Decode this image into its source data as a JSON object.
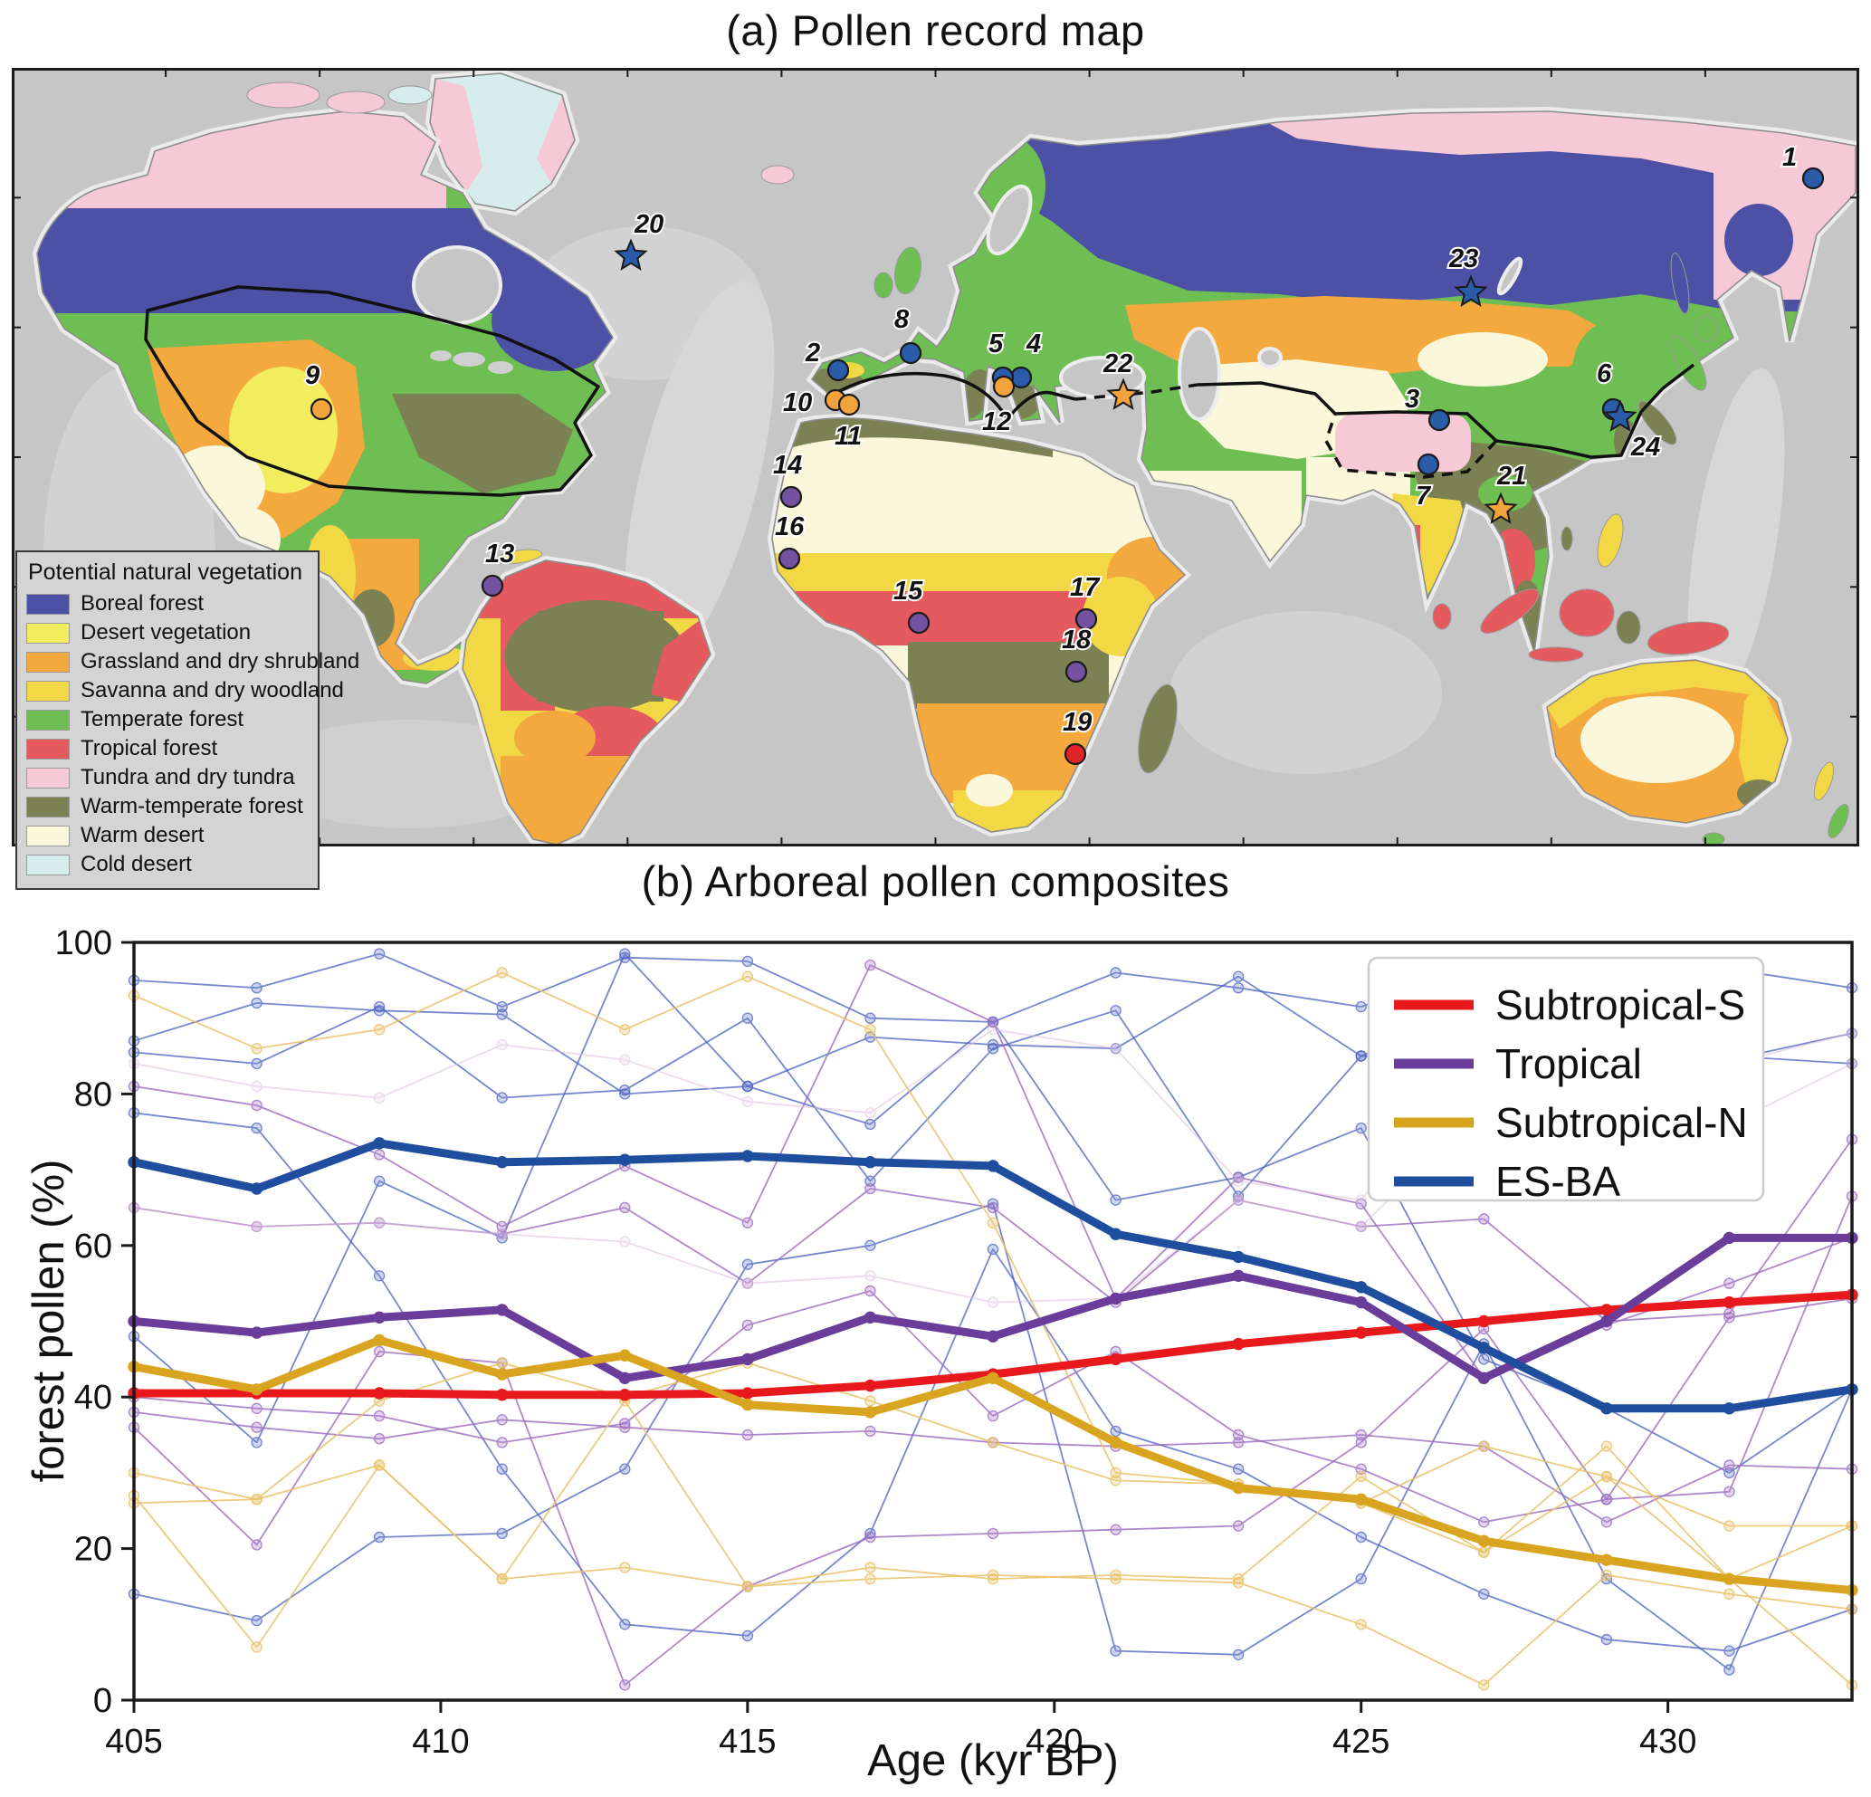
{
  "panel_a": {
    "title": "(a) Pollen record map"
  },
  "panel_b": {
    "title": "(b) Arboreal pollen composites"
  },
  "map": {
    "legend_title": "Potential natural vegetation",
    "legend_items": [
      {
        "label": "Boreal forest",
        "color": "#4c51a5"
      },
      {
        "label": "Desert vegetation",
        "color": "#f2ec5f"
      },
      {
        "label": "Grassland and dry shrubland",
        "color": "#f4a93f"
      },
      {
        "label": "Savanna and dry woodland",
        "color": "#f3d845"
      },
      {
        "label": "Temperate forest",
        "color": "#6fbe53"
      },
      {
        "label": "Tropical forest",
        "color": "#e55a5e"
      },
      {
        "label": "Tundra and dry tundra",
        "color": "#f6c9d7"
      },
      {
        "label": "Warm-temperate forest",
        "color": "#7c8153"
      },
      {
        "label": "Warm desert",
        "color": "#fbf7da"
      },
      {
        "label": "Cold desert",
        "color": "#d7edeb"
      }
    ],
    "marker_groups": {
      "ES-BA": "#2a5caa",
      "Subtropical-N": "#f2a33c",
      "Tropical": "#7451a1",
      "Subtropical-S": "#e02428"
    },
    "markers": [
      {
        "id": "1",
        "shape": "circle",
        "group": "ES-BA",
        "x": 1990,
        "y": 122,
        "lx": -34,
        "ly": -14
      },
      {
        "id": "2",
        "shape": "circle",
        "group": "ES-BA",
        "x": 913,
        "y": 334,
        "lx": -36,
        "ly": -10
      },
      {
        "id": "3",
        "shape": "circle",
        "group": "ES-BA",
        "x": 1577,
        "y": 389,
        "lx": -38,
        "ly": -14
      },
      {
        "id": "4",
        "shape": "circle",
        "group": "ES-BA",
        "x": 1115,
        "y": 342,
        "lx": 6,
        "ly": -28
      },
      {
        "id": "5",
        "shape": "circle",
        "group": "ES-BA",
        "x": 1095,
        "y": 342,
        "lx": -16,
        "ly": -28
      },
      {
        "id": "6",
        "shape": "circle",
        "group": "ES-BA",
        "x": 1769,
        "y": 377,
        "lx": -18,
        "ly": -30
      },
      {
        "id": "7",
        "shape": "circle",
        "group": "ES-BA",
        "x": 1565,
        "y": 438,
        "lx": -14,
        "ly": 44
      },
      {
        "id": "8",
        "shape": "circle",
        "group": "ES-BA",
        "x": 993,
        "y": 315,
        "lx": -18,
        "ly": -28
      },
      {
        "id": "9",
        "shape": "circle",
        "group": "Subtropical-N",
        "x": 342,
        "y": 377,
        "lx": -18,
        "ly": -28
      },
      {
        "id": "10",
        "shape": "circle",
        "group": "Subtropical-N",
        "x": 910,
        "y": 367,
        "lx": -58,
        "ly": 12
      },
      {
        "id": "11",
        "shape": "circle",
        "group": "Subtropical-N",
        "x": 925,
        "y": 372,
        "lx": -16,
        "ly": 44
      },
      {
        "id": "12",
        "shape": "circle",
        "group": "Subtropical-N",
        "x": 1096,
        "y": 352,
        "lx": -24,
        "ly": 48
      },
      {
        "id": "13",
        "shape": "circle",
        "group": "Tropical",
        "x": 531,
        "y": 572,
        "lx": -8,
        "ly": -26
      },
      {
        "id": "14",
        "shape": "circle",
        "group": "Tropical",
        "x": 861,
        "y": 474,
        "lx": -20,
        "ly": -26
      },
      {
        "id": "15",
        "shape": "circle",
        "group": "Tropical",
        "x": 1002,
        "y": 613,
        "lx": -28,
        "ly": -26
      },
      {
        "id": "16",
        "shape": "circle",
        "group": "Tropical",
        "x": 859,
        "y": 542,
        "lx": -16,
        "ly": -26
      },
      {
        "id": "17",
        "shape": "circle",
        "group": "Tropical",
        "x": 1187,
        "y": 609,
        "lx": -18,
        "ly": -26
      },
      {
        "id": "18",
        "shape": "circle",
        "group": "Tropical",
        "x": 1176,
        "y": 667,
        "lx": -16,
        "ly": -26
      },
      {
        "id": "19",
        "shape": "circle",
        "group": "Subtropical-S",
        "x": 1175,
        "y": 758,
        "lx": -14,
        "ly": -26
      },
      {
        "id": "20",
        "shape": "star",
        "group": "ES-BA",
        "x": 684,
        "y": 208,
        "lx": 4,
        "ly": -26
      },
      {
        "id": "21",
        "shape": "star",
        "group": "Subtropical-N",
        "x": 1645,
        "y": 488,
        "lx": -4,
        "ly": -28
      },
      {
        "id": "22",
        "shape": "star",
        "group": "Subtropical-N",
        "x": 1228,
        "y": 362,
        "lx": -22,
        "ly": -26
      },
      {
        "id": "23",
        "shape": "star",
        "group": "ES-BA",
        "x": 1612,
        "y": 248,
        "lx": -24,
        "ly": -28
      },
      {
        "id": "24",
        "shape": "star",
        "group": "ES-BA",
        "x": 1777,
        "y": 386,
        "lx": 12,
        "ly": 42
      }
    ]
  },
  "chart_data": {
    "type": "line",
    "title": "(b) Arboreal pollen composites",
    "xlabel": "Age (kyr BP)",
    "ylabel": "forest pollen (%)",
    "xlim": [
      405,
      433
    ],
    "ylim": [
      0,
      100
    ],
    "x_ticks": [
      405,
      410,
      415,
      420,
      425,
      430
    ],
    "y_ticks": [
      0,
      20,
      40,
      60,
      80,
      100
    ],
    "legend_position": "upper right",
    "grid": false,
    "ages": [
      405,
      407,
      409,
      411,
      413,
      415,
      417,
      419,
      421,
      423,
      425,
      427,
      429,
      431,
      433
    ],
    "composites": [
      {
        "name": "Subtropical-S",
        "color": "#e8191d",
        "values": [
          40.5,
          40.5,
          40.5,
          40.3,
          40.3,
          40.5,
          41.5,
          43,
          45,
          47,
          48.5,
          50,
          51.5,
          52.5,
          53.5
        ]
      },
      {
        "name": "Tropical",
        "color": "#6a3d9a",
        "values": [
          50,
          48.5,
          50.5,
          51.5,
          42.5,
          45,
          50.5,
          48,
          53,
          56,
          52.5,
          42.5,
          50,
          61,
          61
        ]
      },
      {
        "name": "Subtropical-N",
        "color": "#d9a520",
        "values": [
          44,
          41,
          47.5,
          43,
          45.5,
          39,
          38,
          42.5,
          34,
          28,
          26.5,
          21,
          18.5,
          16,
          14.5
        ]
      },
      {
        "name": "ES-BA",
        "color": "#1f4e9e",
        "values": [
          71,
          67.5,
          73.5,
          71,
          71.3,
          71.8,
          71,
          70.5,
          61.5,
          58.5,
          54.5,
          46.5,
          38.5,
          38.5,
          41
        ]
      }
    ],
    "records": [
      {
        "group": "ES-BA",
        "color": "#4a5fc0",
        "opacity": 0.75,
        "values": [
          95,
          94,
          98.5,
          91.5,
          98,
          97.5,
          90,
          89.5,
          96,
          94,
          91.5,
          97,
          92,
          96.5,
          94
        ]
      },
      {
        "group": "ES-BA",
        "color": "#4a5fc0",
        "opacity": 0.75,
        "values": [
          87,
          92,
          91,
          90.5,
          80,
          81,
          87.5,
          86.5,
          86,
          95.5,
          85,
          91.5,
          95,
          85,
          84
        ]
      },
      {
        "group": "ES-BA",
        "color": "#4a5fc0",
        "opacity": 0.75,
        "values": [
          85.5,
          84,
          91.5,
          79.5,
          80.5,
          90,
          68.5,
          86,
          91,
          66.5,
          85,
          84.5,
          73.5,
          84.5,
          88
        ]
      },
      {
        "group": "ES-BA",
        "color": "#4a5fc0",
        "opacity": 0.75,
        "values": [
          77.5,
          75.5,
          56,
          30.5,
          10,
          8.5,
          22,
          59.5,
          35.5,
          30.5,
          21.5,
          14,
          8,
          6.5,
          12
        ]
      },
      {
        "group": "ES-BA",
        "color": "#4a5fc0",
        "opacity": 0.75,
        "values": [
          14,
          10.5,
          21.5,
          22,
          30.5,
          57.5,
          60,
          65.5,
          6.5,
          6,
          16,
          47,
          16,
          4,
          41
        ]
      },
      {
        "group": "ES-BA",
        "color": "#4a5fc0",
        "opacity": 0.75,
        "values": [
          48,
          34,
          68.5,
          61,
          98.5,
          81,
          76,
          89.5,
          66,
          69,
          75.5,
          45,
          38.5,
          30,
          41
        ]
      },
      {
        "group": "Tropical",
        "color": "#9b6bbf",
        "opacity": 0.8,
        "values": [
          81,
          78.5,
          72,
          62.5,
          70.5,
          63,
          97,
          89.5,
          53,
          69,
          65.5,
          42.5,
          49.5,
          55,
          61
        ]
      },
      {
        "group": "Tropical",
        "color": "#9b6bbf",
        "opacity": 0.8,
        "values": [
          65,
          62.5,
          63,
          61.5,
          65,
          55,
          67.5,
          65,
          52.5,
          66,
          62.5,
          63.5,
          50,
          51,
          74
        ]
      },
      {
        "group": "Tropical",
        "color": "#9b6bbf",
        "opacity": 0.8,
        "values": [
          40,
          38.5,
          37.5,
          34,
          36.5,
          49.5,
          54,
          37.5,
          46,
          35,
          30.5,
          23.5,
          26.5,
          27.5,
          66.5
        ]
      },
      {
        "group": "Tropical",
        "color": "#9b6bbf",
        "opacity": 0.8,
        "values": [
          36,
          20.5,
          46,
          44.5,
          2,
          15,
          21.5,
          22,
          22.5,
          23,
          34,
          49,
          26.5,
          50.5,
          53
        ]
      },
      {
        "group": "Tropical",
        "color": "#9b6bbf",
        "opacity": 0.8,
        "values": [
          38,
          36,
          34.5,
          37,
          36,
          35,
          35.5,
          34,
          33.5,
          34,
          35,
          33.5,
          23.5,
          31,
          30.5
        ]
      },
      {
        "group": "Subtropical-N",
        "color": "#e9c26a",
        "opacity": 0.85,
        "values": [
          93,
          86,
          88.5,
          96,
          88.5,
          95.5,
          88.5,
          63,
          30,
          28.5,
          26,
          19.5,
          29.5,
          16,
          2
        ]
      },
      {
        "group": "Subtropical-N",
        "color": "#e9c26a",
        "opacity": 0.85,
        "values": [
          30,
          26.5,
          31,
          16,
          39.5,
          15,
          17.5,
          16,
          16.5,
          16,
          29.5,
          19.5,
          33.5,
          16,
          23
        ]
      },
      {
        "group": "Subtropical-N",
        "color": "#e9c26a",
        "opacity": 0.85,
        "values": [
          27,
          7,
          31,
          16,
          17.5,
          15,
          16,
          16.5,
          16,
          15.5,
          10,
          2,
          16.5,
          14,
          12
        ]
      },
      {
        "group": "Subtropical-N",
        "color": "#e9c26a",
        "opacity": 0.85,
        "values": [
          26,
          26.5,
          39.5,
          44.5,
          40,
          44.5,
          39.5,
          34,
          29,
          28.5,
          26,
          33.5,
          29.5,
          23,
          23
        ]
      },
      {
        "group": "faded",
        "color": "#debfdd",
        "opacity": 0.55,
        "values": [
          84,
          81,
          79.5,
          86.5,
          84.5,
          79,
          77.5,
          88.5,
          86,
          68.5,
          66,
          86.5,
          73.5,
          84,
          88
        ]
      },
      {
        "group": "faded",
        "color": "#debfdd",
        "opacity": 0.55,
        "values": [
          65,
          62.5,
          63,
          61.5,
          60.5,
          55,
          56,
          52.5,
          53,
          66,
          62.5,
          78.5,
          73.5,
          76,
          84
        ]
      }
    ]
  }
}
